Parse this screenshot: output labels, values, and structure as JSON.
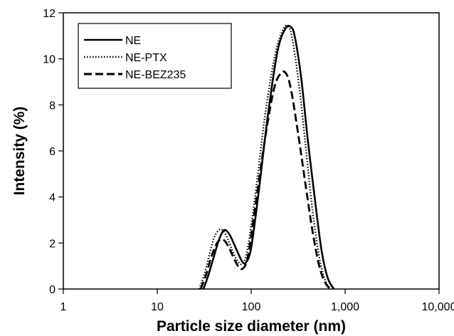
{
  "chart_data": {
    "type": "line",
    "xlabel": "Particle size diameter (nm)",
    "ylabel": "Intensity (%)",
    "xscale": "log",
    "xlim": [
      1,
      10000
    ],
    "ylim": [
      0,
      12
    ],
    "x_ticks": [
      1,
      10,
      100,
      1000,
      10000
    ],
    "x_tick_labels": [
      "1",
      "10",
      "100",
      "1,000",
      "10,000"
    ],
    "y_ticks": [
      0,
      2,
      4,
      6,
      8,
      10,
      12
    ],
    "y_tick_labels": [
      "0",
      "2",
      "4",
      "6",
      "8",
      "10",
      "12"
    ],
    "grid": false,
    "legend_position": "top-left",
    "series": [
      {
        "name": "NE",
        "line_style": "solid",
        "color": "#000000",
        "points": [
          [
            31,
            0
          ],
          [
            35,
            0.6
          ],
          [
            40,
            1.4
          ],
          [
            45,
            2.1
          ],
          [
            50,
            2.5
          ],
          [
            54,
            2.55
          ],
          [
            60,
            2.3
          ],
          [
            70,
            1.7
          ],
          [
            80,
            1.2
          ],
          [
            88,
            1.15
          ],
          [
            100,
            1.8
          ],
          [
            120,
            4.2
          ],
          [
            150,
            7.5
          ],
          [
            190,
            10.3
          ],
          [
            230,
            11.3
          ],
          [
            262,
            11.4
          ],
          [
            290,
            11.0
          ],
          [
            340,
            9.2
          ],
          [
            400,
            6.5
          ],
          [
            480,
            3.8
          ],
          [
            560,
            1.7
          ],
          [
            650,
            0.5
          ],
          [
            760,
            0
          ]
        ]
      },
      {
        "name": "NE-PTX",
        "line_style": "dotted",
        "color": "#000000",
        "points": [
          [
            28,
            0
          ],
          [
            32,
            0.7
          ],
          [
            36,
            1.5
          ],
          [
            40,
            2.2
          ],
          [
            45,
            2.55
          ],
          [
            50,
            2.55
          ],
          [
            56,
            2.2
          ],
          [
            64,
            1.6
          ],
          [
            72,
            1.2
          ],
          [
            80,
            1.1
          ],
          [
            90,
            1.6
          ],
          [
            110,
            4.0
          ],
          [
            140,
            7.5
          ],
          [
            180,
            10.2
          ],
          [
            220,
            11.3
          ],
          [
            245,
            11.4
          ],
          [
            270,
            11.0
          ],
          [
            320,
            9.0
          ],
          [
            380,
            6.2
          ],
          [
            450,
            3.4
          ],
          [
            530,
            1.4
          ],
          [
            610,
            0.4
          ],
          [
            700,
            0
          ]
        ]
      },
      {
        "name": "NE-BEZ235",
        "line_style": "dashed",
        "color": "#000000",
        "points": [
          [
            29,
            0
          ],
          [
            33,
            0.6
          ],
          [
            37,
            1.3
          ],
          [
            42,
            1.9
          ],
          [
            47,
            2.15
          ],
          [
            52,
            2.1
          ],
          [
            58,
            1.8
          ],
          [
            66,
            1.3
          ],
          [
            74,
            0.95
          ],
          [
            82,
            0.9
          ],
          [
            92,
            1.4
          ],
          [
            110,
            3.5
          ],
          [
            140,
            6.5
          ],
          [
            175,
            8.7
          ],
          [
            210,
            9.4
          ],
          [
            240,
            9.3
          ],
          [
            270,
            8.5
          ],
          [
            320,
            6.6
          ],
          [
            380,
            4.5
          ],
          [
            450,
            2.5
          ],
          [
            530,
            1.0
          ],
          [
            610,
            0.3
          ],
          [
            690,
            0
          ]
        ]
      }
    ]
  }
}
